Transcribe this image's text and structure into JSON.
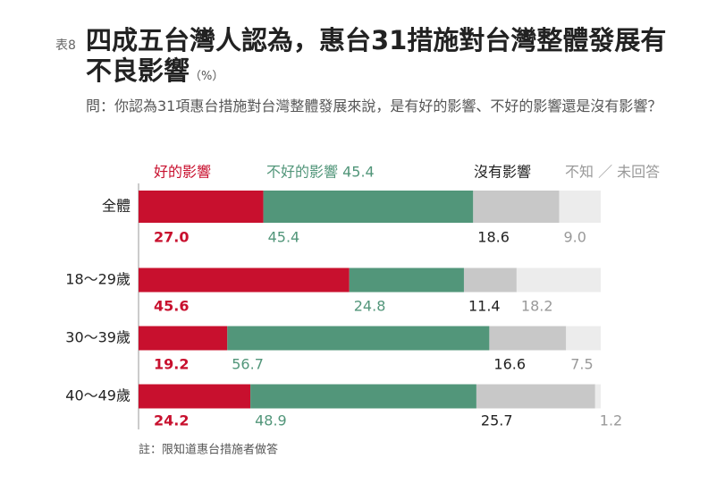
{
  "chart_data": {
    "type": "stacked-bar-horizontal",
    "table_label": "表8",
    "title": "四成五台灣人認為，惠台31措施對台灣整體發展有不良影響",
    "unit": "（%）",
    "subtitle": "問：你認為31項惠台措施對台灣整體發展來說，是有好的影響、不好的影響還是沒有影響？",
    "note": "註：限知道惠台措施者做答",
    "categories": [
      "全體",
      "18～29歲",
      "30～39歲",
      "40～49歲"
    ],
    "xlim": [
      0,
      100
    ],
    "series": [
      {
        "name": "好的影響",
        "color": "#c8102e",
        "values": [
          27,
          45.6,
          19.2,
          24.2
        ],
        "value_labels": [
          "27.0",
          "45.6",
          "19.2",
          "24.2"
        ]
      },
      {
        "name": "不好的影響 45.4",
        "color": "#52967a",
        "values": [
          45.4,
          24.8,
          56.7,
          48.9
        ],
        "value_labels": [
          "45.4",
          "24.8",
          "56.7",
          "48.9"
        ]
      },
      {
        "name": "沒有影響",
        "color": "#c8c8c8",
        "values": [
          18.6,
          11.4,
          16.6,
          25.7
        ],
        "value_labels": [
          "18.6",
          "11.4",
          "16.6",
          "25.7"
        ]
      },
      {
        "name": "不知 ／ 未回答",
        "color": "#ececec",
        "values": [
          9,
          18.2,
          7.5,
          1.2
        ],
        "value_labels": [
          "9.0",
          "18.2",
          "7.5",
          "1.2"
        ]
      }
    ]
  }
}
